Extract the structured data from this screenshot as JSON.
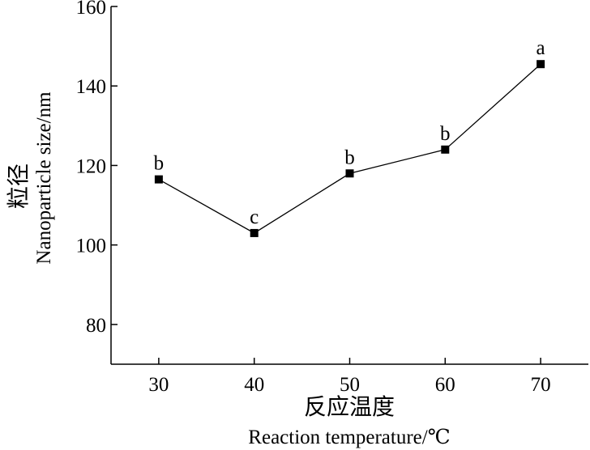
{
  "chart_data": {
    "type": "line",
    "x": [
      30,
      40,
      50,
      60,
      70
    ],
    "series": [
      {
        "values": [
          116.5,
          103,
          118,
          124,
          145.5
        ],
        "significance_labels": [
          "b",
          "c",
          "b",
          "b",
          "a"
        ],
        "marker": "square",
        "color": "#000000"
      }
    ],
    "xlabel_zh": "反应温度",
    "xlabel_en": "Reaction temperature/℃",
    "ylabel_zh": "粒径",
    "ylabel_en": "Nanoparticle size/nm",
    "xlim": [
      25,
      75
    ],
    "ylim": [
      70,
      160
    ],
    "xticks": [
      "30",
      "40",
      "50",
      "60",
      "70"
    ],
    "yticks": [
      "80",
      "100",
      "120",
      "140",
      "160"
    ],
    "grid": false,
    "legend": "none"
  }
}
